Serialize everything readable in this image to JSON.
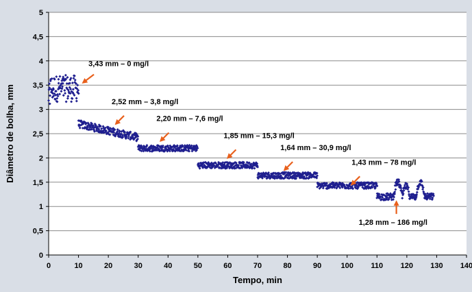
{
  "chart_data": {
    "type": "scatter",
    "title": "",
    "xlabel": "Tempo, min",
    "ylabel": "Diâmetro de bolha,  mm",
    "xlim": [
      0,
      140
    ],
    "ylim": [
      0,
      5
    ],
    "x_ticks": [
      "0",
      "10",
      "20",
      "30",
      "40",
      "50",
      "60",
      "70",
      "80",
      "90",
      "100",
      "110",
      "120",
      "130",
      "140"
    ],
    "y_ticks": [
      "0",
      "0,5",
      "1",
      "1,5",
      "2",
      "2,5",
      "3",
      "3,5",
      "4",
      "4,5",
      "5"
    ],
    "grid": "horizontal",
    "legend": "none",
    "marker_color": "#1f1f8f",
    "annotation_color": "#e8601c",
    "series": [
      {
        "segments": [
          {
            "x_start": 0,
            "x_end": 10,
            "mean": 3.43
          },
          {
            "x_start": 10,
            "x_end": 30,
            "mean": 2.52
          },
          {
            "x_start": 30,
            "x_end": 50,
            "mean": 2.2
          },
          {
            "x_start": 50,
            "x_end": 70,
            "mean": 1.85
          },
          {
            "x_start": 70,
            "x_end": 90,
            "mean": 1.64
          },
          {
            "x_start": 90,
            "x_end": 110,
            "mean": 1.43
          },
          {
            "x_start": 110,
            "x_end": 129,
            "mean": 1.28
          }
        ]
      }
    ],
    "annotations": [
      {
        "text": "3,43 mm – 0 mg/l",
        "x": 11.5,
        "y": 3.55
      },
      {
        "text": "2,52 mm – 3,8 mg/l",
        "x": 22.5,
        "y": 2.7
      },
      {
        "text": "2,20 mm – 7,6 mg/l",
        "x": 37.5,
        "y": 2.35
      },
      {
        "text": "1,85 mm – 15,3 mg/l",
        "x": 60.0,
        "y": 2.0
      },
      {
        "text": "1,64 mm – 30,9 mg/l",
        "x": 79.0,
        "y": 1.75
      },
      {
        "text": "1,43 mm – 78 mg/l",
        "x": 101.5,
        "y": 1.45
      },
      {
        "text": "1,28 mm – 186 mg/l",
        "x": 116.5,
        "y": 1.1
      }
    ]
  }
}
